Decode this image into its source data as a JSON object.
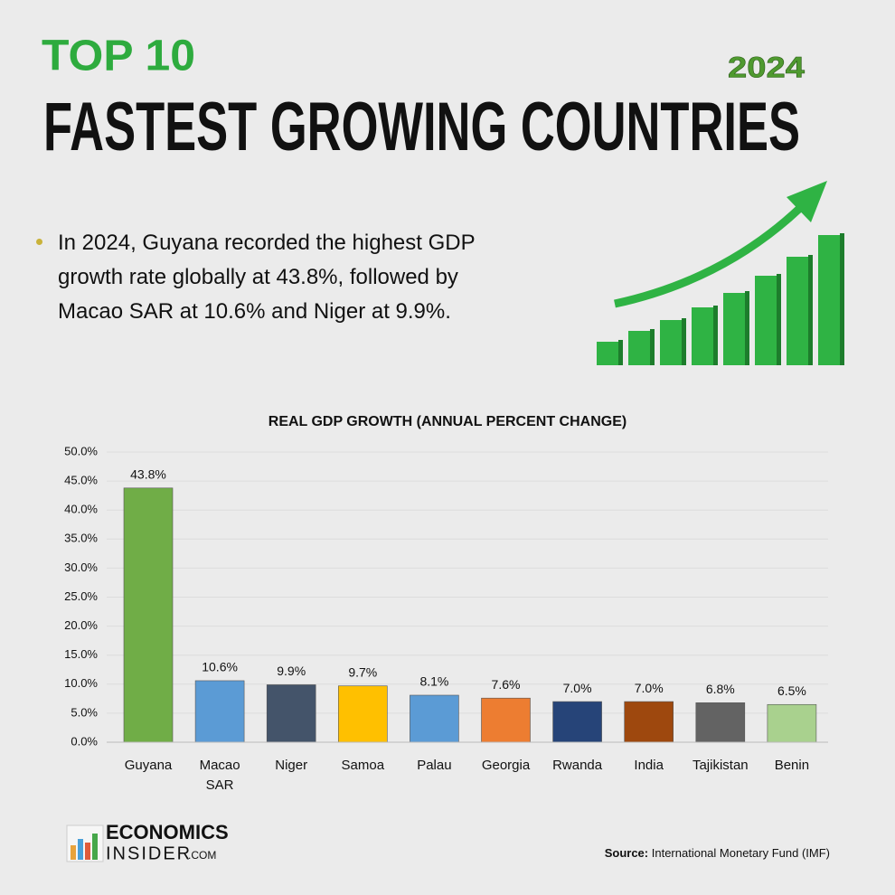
{
  "header": {
    "top": "TOP 10",
    "year": "2024",
    "title": "FASTEST GROWING COUNTRIES"
  },
  "summary": {
    "text": "In 2024, Guyana recorded the highest GDP growth rate globally at 43.8%, followed by Macao SAR at 10.6% and Niger at 9.9%."
  },
  "chart_data": {
    "type": "bar",
    "title": "REAL GDP GROWTH (ANNUAL PERCENT CHANGE)",
    "categories": [
      "Guyana",
      "Macao SAR",
      "Niger",
      "Samoa",
      "Palau",
      "Georgia",
      "Rwanda",
      "India",
      "Tajikistan",
      "Benin"
    ],
    "values": [
      43.8,
      10.6,
      9.9,
      9.7,
      8.1,
      7.6,
      7.0,
      7.0,
      6.8,
      6.5
    ],
    "value_labels": [
      "43.8%",
      "10.6%",
      "9.9%",
      "9.7%",
      "8.1%",
      "7.6%",
      "7.0%",
      "7.0%",
      "6.8%",
      "6.5%"
    ],
    "colors": [
      "#70ad47",
      "#5b9bd5",
      "#44546a",
      "#ffc000",
      "#5b9bd5",
      "#ed7d31",
      "#264478",
      "#9e480e",
      "#636363",
      "#a9d18e"
    ],
    "ylim": [
      0,
      50
    ],
    "yticks": [
      {
        "value": 0,
        "label": "0.0%"
      },
      {
        "value": 5,
        "label": "5.0%"
      },
      {
        "value": 10,
        "label": "10.0%"
      },
      {
        "value": 15,
        "label": "15.0%"
      },
      {
        "value": 20,
        "label": "20.0%"
      },
      {
        "value": 25,
        "label": "25.0%"
      },
      {
        "value": 30,
        "label": "30.0%"
      },
      {
        "value": 35,
        "label": "35.0%"
      },
      {
        "value": 40,
        "label": "40.0%"
      },
      {
        "value": 45,
        "label": "45.0%"
      },
      {
        "value": 50,
        "label": "50.0%"
      }
    ],
    "grid": true
  },
  "footer": {
    "logo_line1": "ECONOMICS",
    "logo_line2": "INSIDER",
    "logo_suffix": ".COM",
    "source_label": "Source:",
    "source": "International Monetary Fund (IMF)"
  }
}
